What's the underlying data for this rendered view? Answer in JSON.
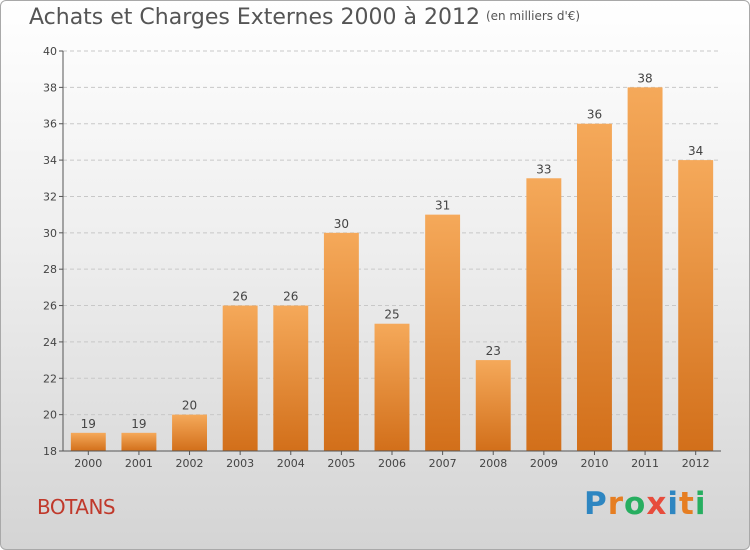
{
  "title": "Achats et Charges Externes 2000 à 2012",
  "unit": "(en milliers d'€)",
  "commune": "BOTANS",
  "logo": {
    "text": "Proxiti",
    "letters": [
      {
        "ch": "P",
        "color": "#2e86c1"
      },
      {
        "ch": "r",
        "color": "#e67e22"
      },
      {
        "ch": "o",
        "color": "#27ae60"
      },
      {
        "ch": "x",
        "color": "#e74c3c"
      },
      {
        "ch": "i",
        "color": "#2e86c1"
      },
      {
        "ch": "t",
        "color": "#e67e22"
      },
      {
        "ch": "i",
        "color": "#27ae60"
      }
    ]
  },
  "colors": {
    "bar_top": "#f5a95a",
    "bar_bottom": "#d26f1a",
    "commune": "#c0392b"
  },
  "chart_data": {
    "type": "bar",
    "categories": [
      "2000",
      "2001",
      "2002",
      "2003",
      "2004",
      "2005",
      "2006",
      "2007",
      "2008",
      "2009",
      "2010",
      "2011",
      "2012"
    ],
    "values": [
      19,
      19,
      20,
      26,
      26,
      30,
      25,
      31,
      23,
      33,
      36,
      38,
      34
    ],
    "ylim": [
      18,
      40
    ],
    "yticks": [
      18,
      20,
      22,
      24,
      26,
      28,
      30,
      32,
      34,
      36,
      38,
      40
    ],
    "grid": true
  }
}
